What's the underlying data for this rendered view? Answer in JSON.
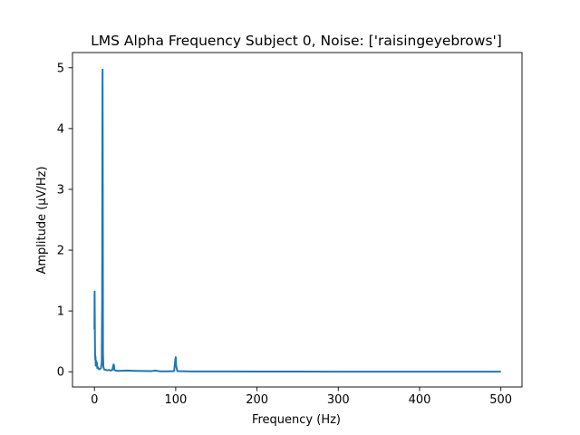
{
  "chart_data": {
    "type": "line",
    "title": "LMS Alpha Frequency Subject 0, Noise: ['raisingeyebrows']",
    "xlabel": "Frequency (Hz)",
    "ylabel": "Amplitude (μV/Hz)",
    "xlim": [
      -27,
      526
    ],
    "ylim": [
      -0.25,
      5.25
    ],
    "xticks": [
      0,
      100,
      200,
      300,
      400,
      500
    ],
    "yticks": [
      0,
      1,
      2,
      3,
      4,
      5
    ],
    "xtick_labels": [
      "0",
      "100",
      "200",
      "300",
      "400",
      "500"
    ],
    "ytick_labels": [
      "0",
      "1",
      "2",
      "3",
      "4",
      "5"
    ],
    "grid": false,
    "series": [
      {
        "color": "#1f77b4",
        "x": [
          0,
          0.2,
          0.4,
          0.6,
          0.8,
          1.0,
          1.3,
          1.6,
          2.0,
          2.5,
          3.0,
          3.5,
          4.0,
          5.0,
          6.0,
          7.0,
          8.0,
          9.0,
          9.5,
          9.8,
          10.0,
          10.2,
          10.5,
          11.0,
          12.0,
          14.0,
          16.0,
          18.0,
          20.0,
          22.0,
          23.5,
          24.0,
          24.5,
          26.0,
          30.0,
          40.0,
          50.0,
          60.0,
          70.0,
          75.0,
          80.0,
          90.0,
          98.0,
          99.5,
          100.0,
          100.5,
          102.0,
          120.0,
          150.0,
          200.0,
          250.0,
          300.0,
          400.0,
          500.0
        ],
        "y": [
          0.7,
          1.32,
          0.95,
          0.5,
          0.3,
          0.2,
          0.25,
          0.1,
          0.18,
          0.12,
          0.15,
          0.06,
          0.08,
          0.05,
          0.04,
          0.05,
          0.06,
          0.15,
          1.2,
          4.0,
          4.97,
          3.5,
          0.3,
          0.08,
          0.04,
          0.03,
          0.025,
          0.03,
          0.02,
          0.03,
          0.12,
          0.11,
          0.03,
          0.02,
          0.015,
          0.02,
          0.015,
          0.012,
          0.01,
          0.02,
          0.008,
          0.008,
          0.01,
          0.2,
          0.24,
          0.1,
          0.01,
          0.006,
          0.005,
          0.004,
          0.003,
          0.002,
          0.002,
          0.002
        ]
      }
    ]
  }
}
